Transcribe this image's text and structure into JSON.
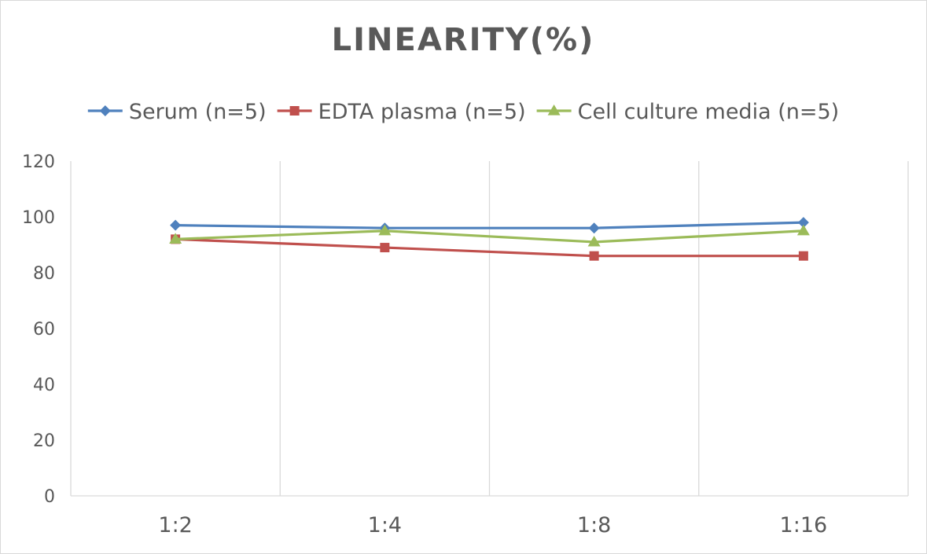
{
  "chart_data": {
    "type": "line",
    "title": "LINEARITY(%)",
    "xlabel": "",
    "ylabel": "",
    "categories": [
      "1:2",
      "1:4",
      "1:8",
      "1:16"
    ],
    "ylim": [
      0,
      120
    ],
    "yticks": [
      0,
      20,
      40,
      60,
      80,
      100,
      120
    ],
    "grid": "vertical",
    "legend_position": "top",
    "series": [
      {
        "name": "Serum (n=5)",
        "values": [
          97,
          96,
          96,
          98
        ],
        "color": "#4f81bd",
        "marker": "diamond"
      },
      {
        "name": "EDTA plasma (n=5)",
        "values": [
          92,
          89,
          86,
          86
        ],
        "color": "#c0504d",
        "marker": "square"
      },
      {
        "name": "Cell culture media (n=5)",
        "values": [
          92,
          95,
          91,
          95
        ],
        "color": "#9bbb59",
        "marker": "triangle"
      }
    ]
  }
}
